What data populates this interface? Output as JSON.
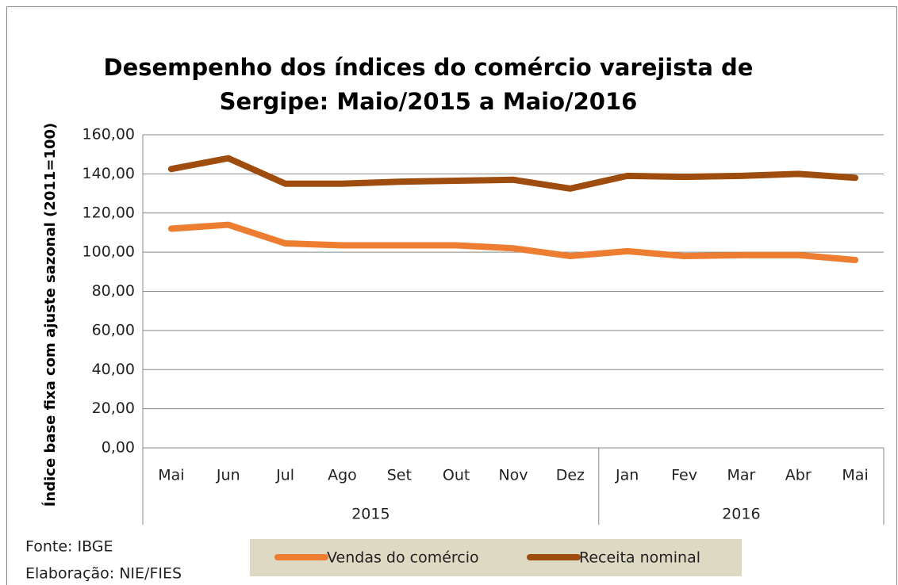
{
  "chart_data": {
    "type": "line",
    "title_lines": [
      "Desempenho dos índices do comércio varejista de",
      "Sergipe: Maio/2015 a Maio/2016"
    ],
    "y_label": "Índice base fixa com ajuste sazonal (2011=100)",
    "categories": [
      "Mai",
      "Jun",
      "Jul",
      "Ago",
      "Set",
      "Out",
      "Nov",
      "Dez",
      "Jan",
      "Fev",
      "Mar",
      "Abr",
      "Mai"
    ],
    "year_groups": [
      {
        "label": "2015",
        "span": 8
      },
      {
        "label": "2016",
        "span": 5
      }
    ],
    "series": [
      {
        "name": "Vendas do comércio",
        "color": "#ed7d31",
        "values": [
          112,
          114,
          104.5,
          103.5,
          103.5,
          103.5,
          102,
          98,
          100.5,
          98,
          98.5,
          98.5,
          96
        ]
      },
      {
        "name": "Receita nominal",
        "color": "#9e4d0e",
        "values": [
          142.5,
          148,
          135,
          135,
          136,
          136.5,
          137,
          132.5,
          139,
          138.5,
          139,
          140,
          138
        ]
      }
    ],
    "ylim": [
      0,
      160
    ],
    "yticks": [
      {
        "value": 0,
        "label": "0,00"
      },
      {
        "value": 20,
        "label": "20,00"
      },
      {
        "value": 40,
        "label": "40,00"
      },
      {
        "value": 60,
        "label": "60,00"
      },
      {
        "value": 80,
        "label": "80,00"
      },
      {
        "value": 100,
        "label": "100,00"
      },
      {
        "value": 120,
        "label": "120,00"
      },
      {
        "value": 140,
        "label": "140,00"
      },
      {
        "value": 160,
        "label": "160,00"
      }
    ],
    "grid": true,
    "legend_position": "bottom",
    "source": "Fonte: IBGE",
    "credit": "Elaboração: NIE/FIES"
  }
}
